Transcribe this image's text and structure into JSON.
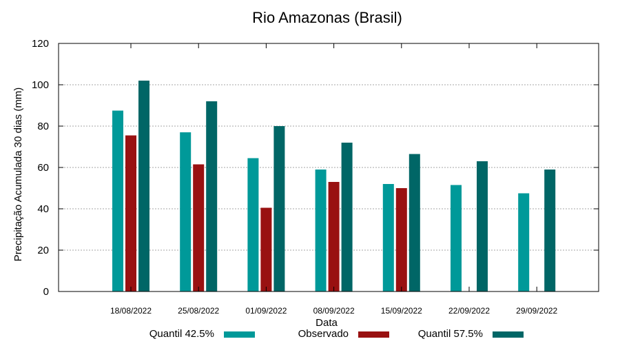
{
  "chart_data": {
    "type": "bar",
    "title": "Rio Amazonas (Brasil)",
    "xlabel": "Data",
    "ylabel": "Precipitação Acumulada 30 dias (mm)",
    "ylim": [
      0,
      120
    ],
    "yticks": [
      0,
      20,
      40,
      60,
      80,
      100,
      120
    ],
    "grid": true,
    "legend_position": "bottom",
    "categories": [
      "18/08/2022",
      "25/08/2022",
      "01/09/2022",
      "08/09/2022",
      "15/09/2022",
      "22/09/2022",
      "29/09/2022"
    ],
    "series": [
      {
        "name": "Quantil 42.5%",
        "color": "#009999",
        "values": [
          87.5,
          77,
          64.5,
          59,
          52,
          51.5,
          47.5
        ]
      },
      {
        "name": "Observado",
        "color": "#991111",
        "values": [
          75.5,
          61.5,
          40.5,
          53,
          50,
          null,
          null
        ]
      },
      {
        "name": "Quantil 57.5%",
        "color": "#006666",
        "values": [
          102,
          92,
          80,
          72,
          66.5,
          63,
          59
        ]
      }
    ]
  }
}
